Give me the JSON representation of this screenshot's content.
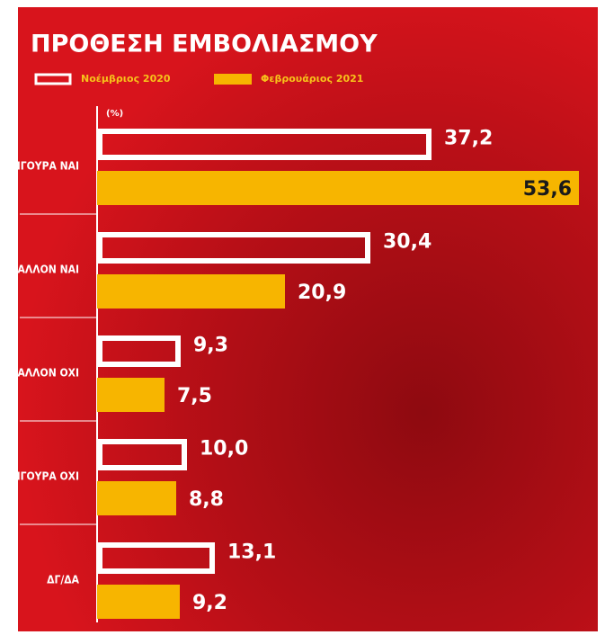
{
  "chart_data": {
    "type": "bar",
    "orientation": "horizontal",
    "title": "ΠΡΟΘΕΣΗ ΕΜΒΟΛΙΑΣΜΟΥ",
    "unit_label": "(%)",
    "categories": [
      "ΣΙΓΟΥΡΑ ΝΑΙ",
      "ΜΑΛΛΟΝ ΝΑΙ",
      "ΜΑΛΛΟΝ ΟΧΙ",
      "ΣΙΓΟΥΡΑ ΟΧΙ",
      "ΔΓ/ΔΑ"
    ],
    "series": [
      {
        "name": "Νοέμβριος 2020",
        "color": "#ffffff",
        "style": "outline",
        "values": [
          37.2,
          30.4,
          9.3,
          10.0,
          13.1
        ],
        "value_labels": [
          "37,2",
          "30,4",
          "9,3",
          "10,0",
          "13,1"
        ]
      },
      {
        "name": "Φεβρουάριος 2021",
        "color": "#f7b500",
        "style": "filled",
        "values": [
          53.6,
          20.9,
          7.5,
          8.8,
          9.2
        ],
        "value_labels": [
          "53,6",
          "20,9",
          "7,5",
          "8,8",
          "9,2"
        ]
      }
    ],
    "legend": "top-left"
  }
}
